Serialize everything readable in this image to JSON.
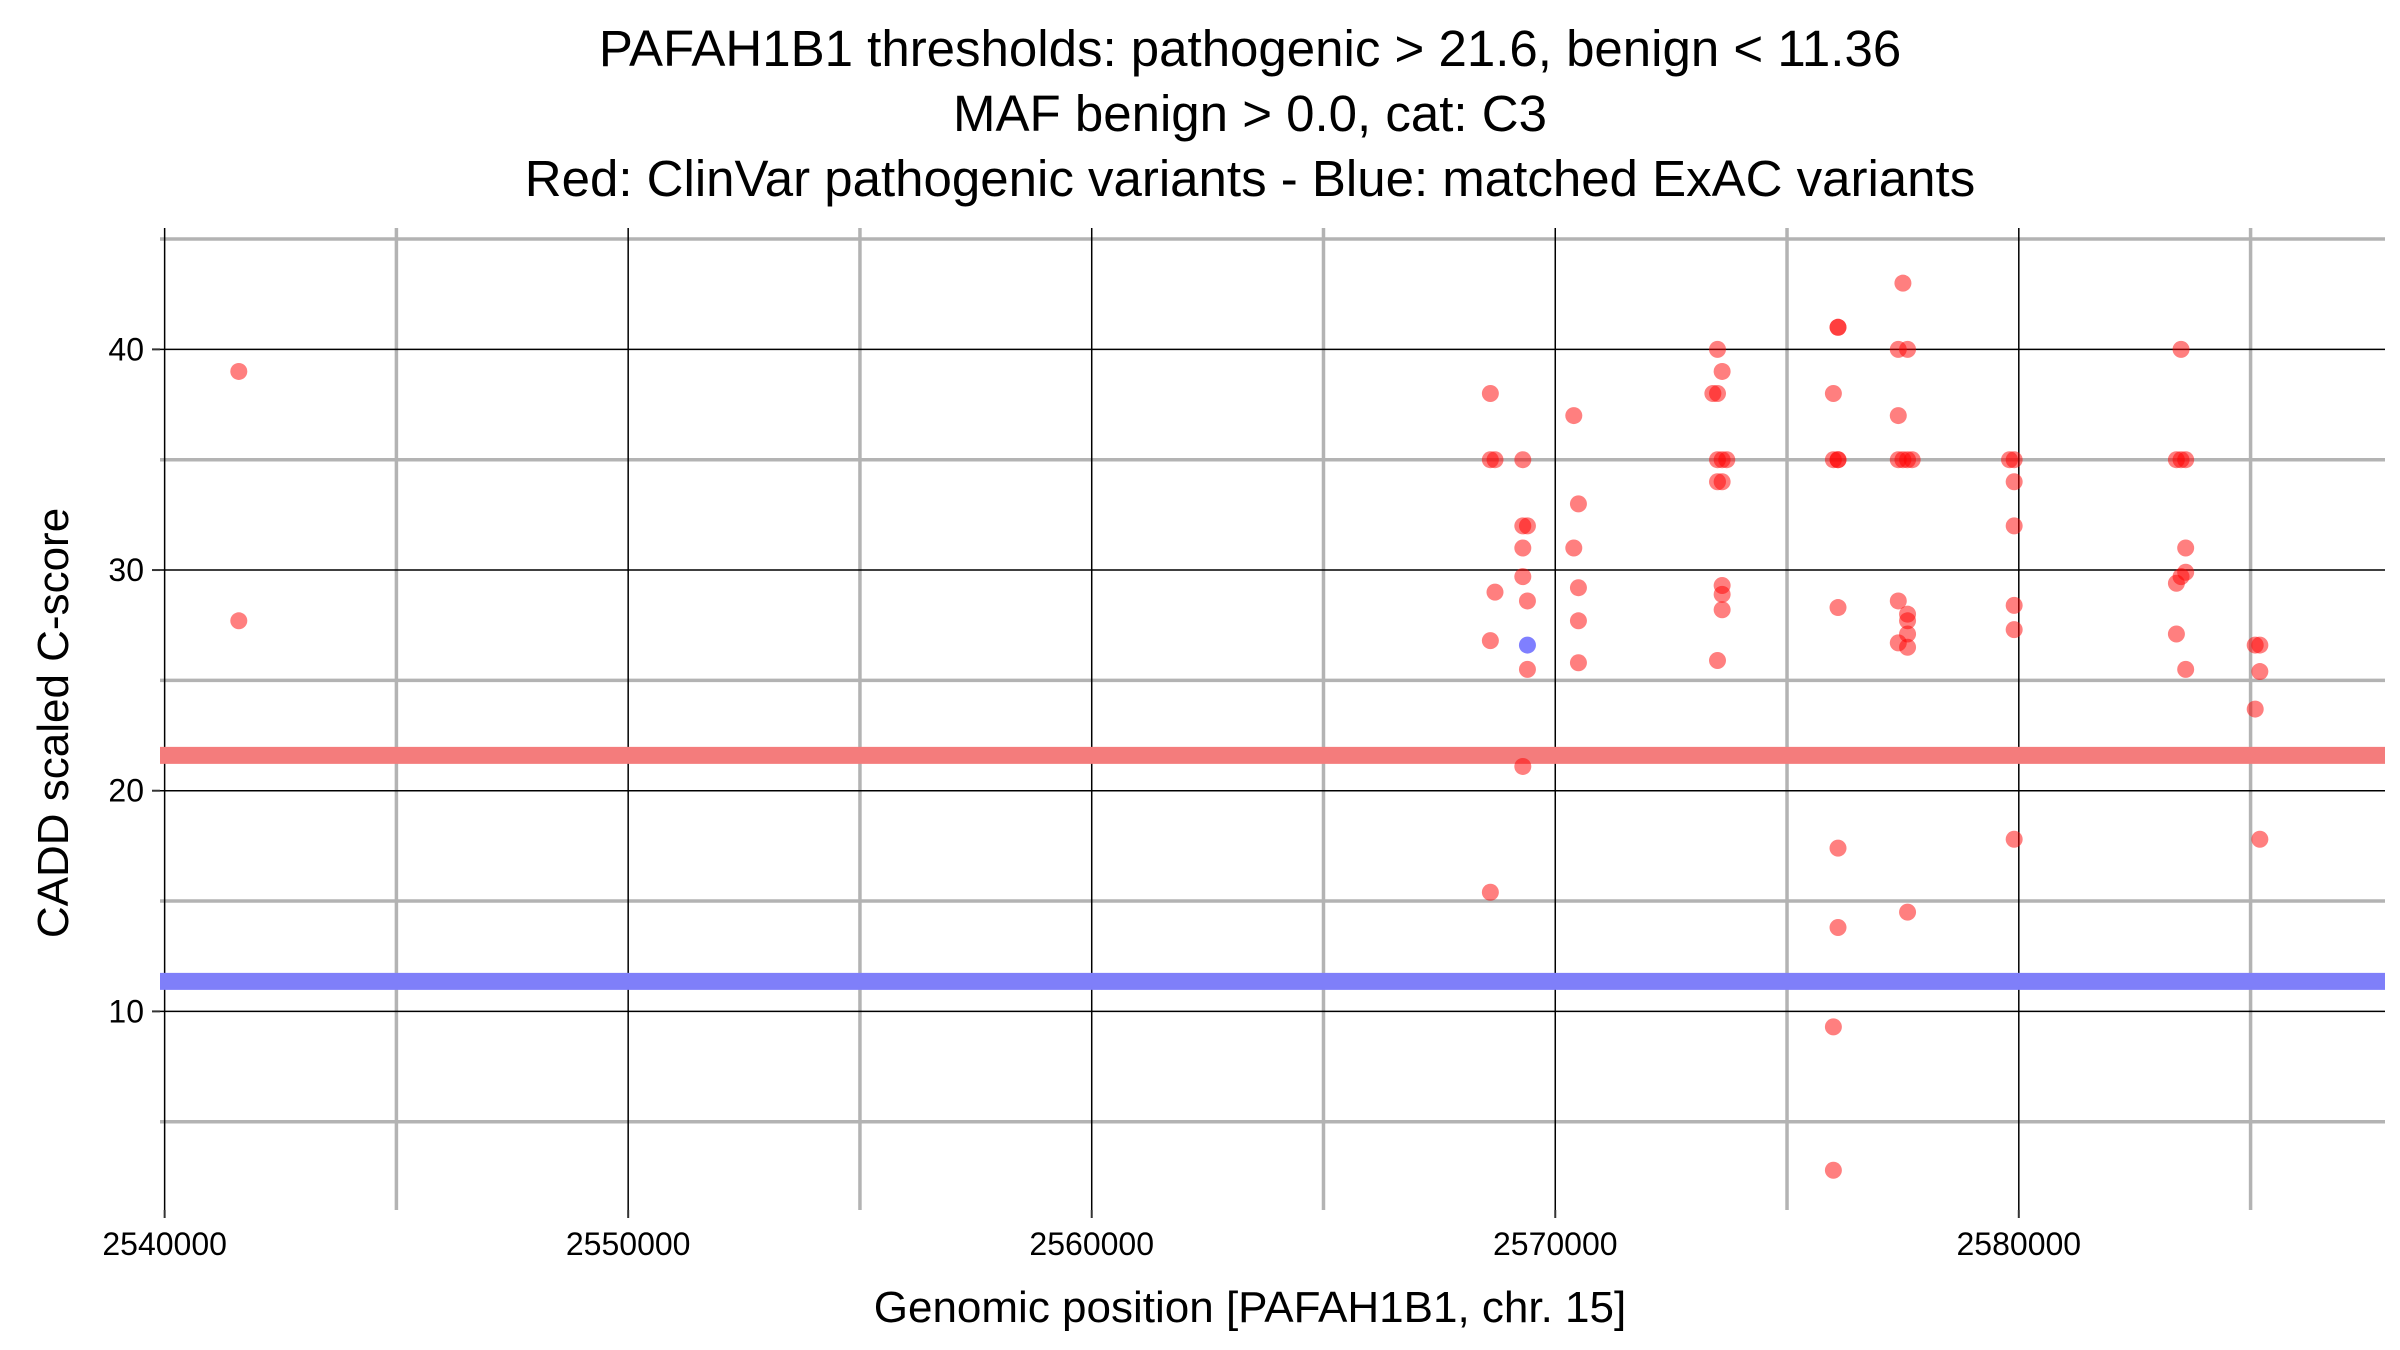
{
  "chart_data": {
    "type": "scatter",
    "title_lines": [
      "PAFAH1B1 thresholds: pathogenic > 21.6, benign < 11.36",
      "MAF benign > 0.0, cat: C3",
      "Red: ClinVar pathogenic variants - Blue: matched ExAC variants"
    ],
    "xlabel": "Genomic position [PAFAH1B1, chr. 15]",
    "ylabel": "CADD scaled C-score",
    "xlim": [
      2539900,
      2587900
    ],
    "ylim": [
      1,
      45.5
    ],
    "x_ticks": [
      2540000,
      2550000,
      2560000,
      2570000,
      2580000
    ],
    "x_tick_labels": [
      "2540000",
      "2550000",
      "2560000",
      "2570000",
      "2580000"
    ],
    "y_ticks": [
      10,
      20,
      30,
      40
    ],
    "y_tick_labels": [
      "10",
      "20",
      "30",
      "40"
    ],
    "grid": true,
    "colors": {
      "pathogenic": "#ff0000",
      "benign": "#0000ff",
      "pathogenic_threshold_band": "#f47c7c",
      "benign_threshold_band": "#7f7ff9",
      "major_grid": "#000000",
      "minor_grid": "#b3b3b3"
    },
    "thresholds": {
      "pathogenic": 21.6,
      "benign": 11.36
    },
    "series": [
      {
        "color": "#ff0000",
        "points": [
          [
            2541600,
            39
          ],
          [
            2541600,
            27.7
          ],
          [
            2568600,
            38
          ],
          [
            2568600,
            35
          ],
          [
            2568700,
            35
          ],
          [
            2568700,
            29
          ],
          [
            2568600,
            26.8
          ],
          [
            2568600,
            15.4
          ],
          [
            2569300,
            35
          ],
          [
            2569400,
            32
          ],
          [
            2569300,
            32
          ],
          [
            2569300,
            31
          ],
          [
            2569300,
            29.7
          ],
          [
            2569400,
            28.6
          ],
          [
            2569400,
            25.5
          ],
          [
            2569300,
            21.1
          ],
          [
            2570400,
            37
          ],
          [
            2570500,
            33
          ],
          [
            2570400,
            31
          ],
          [
            2570500,
            29.2
          ],
          [
            2570500,
            27.7
          ],
          [
            2570500,
            25.8
          ],
          [
            2573500,
            40
          ],
          [
            2573500,
            38
          ],
          [
            2573400,
            38
          ],
          [
            2573600,
            39
          ],
          [
            2573500,
            35
          ],
          [
            2573600,
            35
          ],
          [
            2573700,
            35
          ],
          [
            2573500,
            34
          ],
          [
            2573600,
            34
          ],
          [
            2573600,
            29.3
          ],
          [
            2573600,
            28.9
          ],
          [
            2573600,
            28.2
          ],
          [
            2573500,
            25.9
          ],
          [
            2576100,
            41
          ],
          [
            2576100,
            41
          ],
          [
            2576000,
            38
          ],
          [
            2576000,
            35
          ],
          [
            2576100,
            35
          ],
          [
            2576100,
            35
          ],
          [
            2576100,
            28.3
          ],
          [
            2576100,
            17.4
          ],
          [
            2576100,
            13.8
          ],
          [
            2576000,
            9.3
          ],
          [
            2576000,
            2.8
          ],
          [
            2577500,
            43
          ],
          [
            2577400,
            40
          ],
          [
            2577600,
            40
          ],
          [
            2577400,
            37
          ],
          [
            2577400,
            35
          ],
          [
            2577500,
            35
          ],
          [
            2577600,
            35
          ],
          [
            2577700,
            35
          ],
          [
            2577400,
            28.6
          ],
          [
            2577600,
            28
          ],
          [
            2577600,
            27.7
          ],
          [
            2577600,
            27.1
          ],
          [
            2577400,
            26.7
          ],
          [
            2577600,
            26.5
          ],
          [
            2577600,
            14.5
          ],
          [
            2579800,
            35
          ],
          [
            2579900,
            35
          ],
          [
            2579900,
            34
          ],
          [
            2579900,
            32
          ],
          [
            2579900,
            28.4
          ],
          [
            2579900,
            27.3
          ],
          [
            2579900,
            17.8
          ],
          [
            2583500,
            40
          ],
          [
            2583400,
            35
          ],
          [
            2583500,
            35
          ],
          [
            2583600,
            35
          ],
          [
            2583600,
            31
          ],
          [
            2583600,
            29.9
          ],
          [
            2583500,
            29.7
          ],
          [
            2583400,
            29.4
          ],
          [
            2583400,
            27.1
          ],
          [
            2583600,
            25.5
          ],
          [
            2585100,
            26.6
          ],
          [
            2585200,
            26.6
          ],
          [
            2585200,
            25.4
          ],
          [
            2585100,
            23.7
          ],
          [
            2585200,
            17.8
          ]
        ]
      },
      {
        "color": "#0000ff",
        "points": [
          [
            2569400,
            26.6
          ]
        ]
      }
    ]
  }
}
